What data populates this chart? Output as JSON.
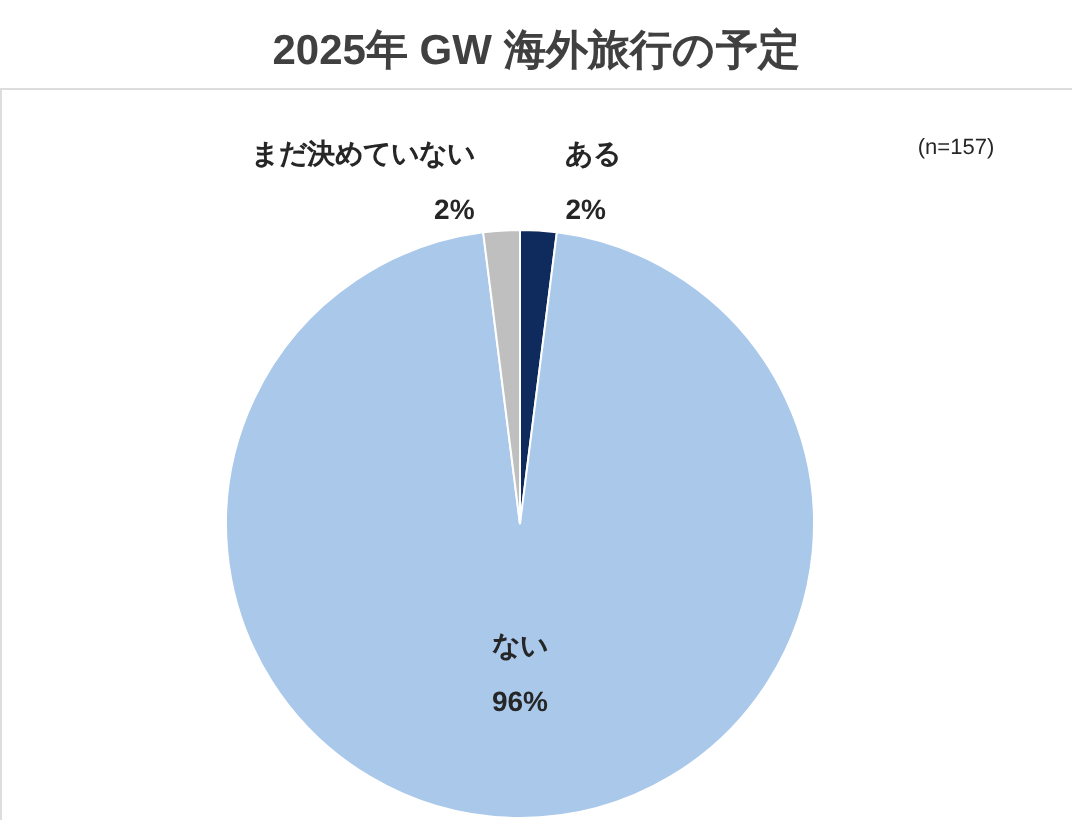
{
  "chart_data": {
    "type": "pie",
    "title": "2025年 GW 海外旅行の予定",
    "categories": [
      "ある",
      "ない",
      "まだ決めていない"
    ],
    "values": [
      2,
      96,
      2
    ],
    "colors": [
      "#0f2a5c",
      "#a9c8ea",
      "#bfbfbf"
    ],
    "value_labels": [
      "2%",
      "96%",
      "2%"
    ],
    "legend": false,
    "annotations": [
      "(n=157)"
    ]
  }
}
